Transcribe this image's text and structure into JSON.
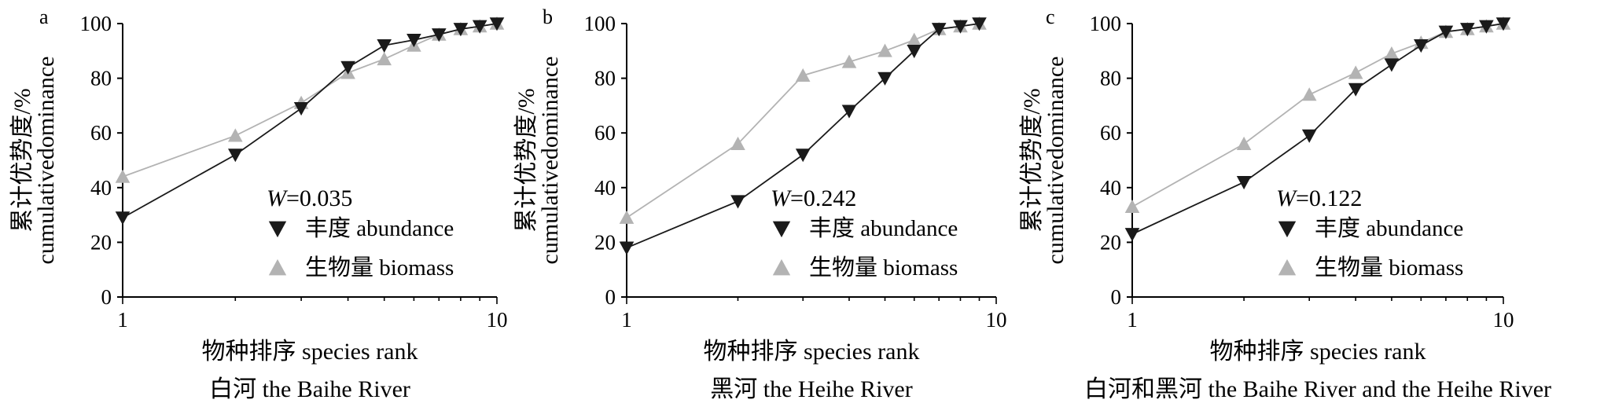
{
  "chart_data": [
    {
      "type": "line",
      "panel_label": "a",
      "x_scale": "log",
      "xlim": [
        1,
        10
      ],
      "ylim": [
        0,
        100
      ],
      "xticks": [
        "1",
        "10"
      ],
      "yticks": [
        "0",
        "20",
        "40",
        "60",
        "80",
        "100"
      ],
      "ylabel_cn": "累计优势度/%",
      "ylabel_en": "cumulativedominance",
      "xlabel": "物种排序 species rank",
      "subtitle": "白河 the Baihe River",
      "w_label": "W",
      "w_value": "=0.035",
      "legend_position": "center-right",
      "series": [
        {
          "name": "丰度 abundance",
          "marker": "down-triangle",
          "color": "#1a1a1a",
          "x": [
            1,
            2,
            3,
            4,
            5,
            6,
            7,
            8,
            9,
            10
          ],
          "y": [
            29,
            52,
            69,
            84,
            92,
            94,
            96,
            98,
            99,
            100
          ]
        },
        {
          "name": "生物量 biomass",
          "marker": "up-triangle",
          "color": "#b3b3b3",
          "x": [
            1,
            2,
            3,
            4,
            5,
            6,
            7,
            8,
            9,
            10
          ],
          "y": [
            44,
            59,
            71,
            82,
            87,
            92,
            96,
            98,
            99,
            100
          ]
        }
      ]
    },
    {
      "type": "line",
      "panel_label": "b",
      "x_scale": "log",
      "xlim": [
        1,
        10
      ],
      "ylim": [
        0,
        100
      ],
      "xticks": [
        "1",
        "10"
      ],
      "yticks": [
        "0",
        "20",
        "40",
        "60",
        "80",
        "100"
      ],
      "ylabel_cn": "累计优势度/%",
      "ylabel_en": "cumulativedominance",
      "xlabel": "物种排序 species rank",
      "subtitle": "黑河 the Heihe River",
      "w_label": "W",
      "w_value": "=0.242",
      "legend_position": "center-right",
      "series": [
        {
          "name": "丰度 abundance",
          "marker": "down-triangle",
          "color": "#1a1a1a",
          "x": [
            1,
            2,
            3,
            4,
            5,
            6,
            7,
            8,
            9
          ],
          "y": [
            18,
            35,
            52,
            68,
            80,
            90,
            98,
            99,
            100
          ]
        },
        {
          "name": "生物量 biomass",
          "marker": "up-triangle",
          "color": "#b3b3b3",
          "x": [
            1,
            2,
            3,
            4,
            5,
            6,
            7,
            8,
            9
          ],
          "y": [
            29,
            56,
            81,
            86,
            90,
            94,
            98,
            99,
            100
          ]
        }
      ]
    },
    {
      "type": "line",
      "panel_label": "c",
      "x_scale": "log",
      "xlim": [
        1,
        10
      ],
      "ylim": [
        0,
        100
      ],
      "xticks": [
        "1",
        "10"
      ],
      "yticks": [
        "0",
        "20",
        "40",
        "60",
        "80",
        "100"
      ],
      "ylabel_cn": "累计优势度/%",
      "ylabel_en": "cumulativedominance",
      "xlabel": "物种排序 species rank",
      "subtitle": "白河和黑河 the Baihe River and the Heihe River",
      "w_label": "W",
      "w_value": "=0.122",
      "legend_position": "center-right",
      "series": [
        {
          "name": "丰度 abundance",
          "marker": "down-triangle",
          "color": "#1a1a1a",
          "x": [
            1,
            2,
            3,
            4,
            5,
            6,
            7,
            8,
            9,
            10
          ],
          "y": [
            23,
            42,
            59,
            76,
            85,
            92,
            97,
            98,
            99,
            100
          ]
        },
        {
          "name": "生物量 biomass",
          "marker": "up-triangle",
          "color": "#b3b3b3",
          "x": [
            1,
            2,
            3,
            4,
            5,
            6,
            7,
            8,
            9,
            10
          ],
          "y": [
            33,
            56,
            74,
            82,
            89,
            93,
            97,
            98,
            99,
            100
          ]
        }
      ]
    }
  ]
}
